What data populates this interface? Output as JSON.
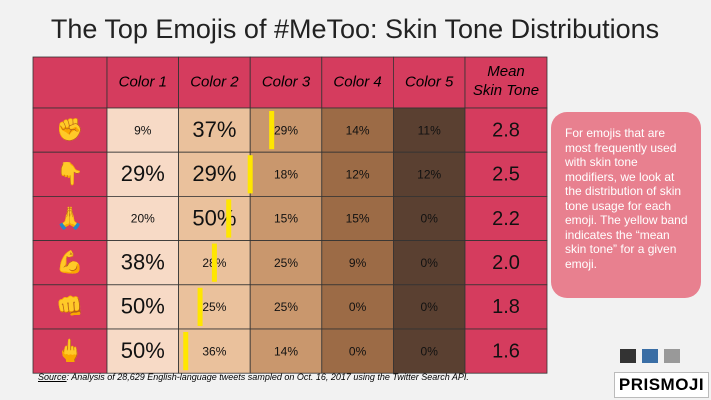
{
  "title": "The Top Emojis of #MeToo: Skin Tone Distributions",
  "table": {
    "header": [
      "Color 1",
      "Color 2",
      "Color 3",
      "Color 4",
      "Color 5",
      "Mean Skin Tone"
    ],
    "rows": [
      {
        "emoji": "✊",
        "values": [
          "9%",
          "37%",
          "29%",
          "14%",
          "11%"
        ],
        "mean": "2.8"
      },
      {
        "emoji": "👇",
        "values": [
          "29%",
          "29%",
          "18%",
          "12%",
          "12%"
        ],
        "mean": "2.5"
      },
      {
        "emoji": "🙏",
        "values": [
          "20%",
          "50%",
          "15%",
          "15%",
          "0%"
        ],
        "mean": "2.2"
      },
      {
        "emoji": "💪",
        "values": [
          "38%",
          "28%",
          "25%",
          "9%",
          "0%"
        ],
        "mean": "2.0"
      },
      {
        "emoji": "👊",
        "values": [
          "50%",
          "25%",
          "25%",
          "0%",
          "0%"
        ],
        "mean": "1.8"
      },
      {
        "emoji": "🖕",
        "values": [
          "50%",
          "36%",
          "14%",
          "0%",
          "0%"
        ],
        "mean": "1.6"
      }
    ]
  },
  "note": "For emojis that are most frequently used with skin tone modifiers, we look at the distribution of skin tone usage for each emoji. The yellow band indicates the “mean skin tone” for a given emoji.",
  "source": {
    "label": "Source",
    "text": ": Analysis of 28,629 English-language tweets sampled on Oct. 16, 2017 using the Twitter Search API."
  },
  "logo": "PRISMOJI"
}
